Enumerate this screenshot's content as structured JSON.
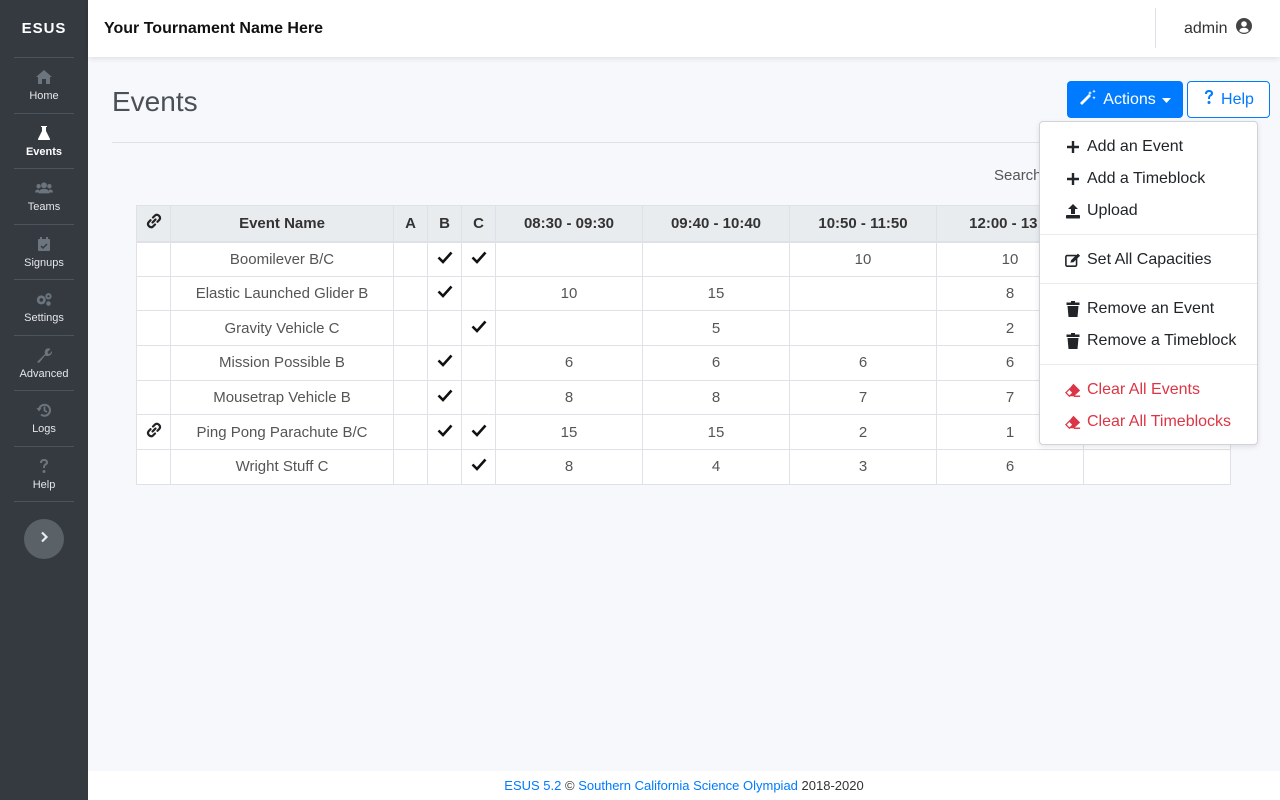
{
  "sidebar": {
    "brand": "ESUS",
    "items": [
      {
        "label": "Home",
        "icon": "home-icon"
      },
      {
        "label": "Events",
        "icon": "flask-icon"
      },
      {
        "label": "Teams",
        "icon": "users-icon"
      },
      {
        "label": "Signups",
        "icon": "calendar-icon"
      },
      {
        "label": "Settings",
        "icon": "gears-icon"
      },
      {
        "label": "Advanced",
        "icon": "wrench-icon"
      },
      {
        "label": "Logs",
        "icon": "history-icon"
      },
      {
        "label": "Help",
        "icon": "question-icon"
      }
    ],
    "active": "Events"
  },
  "header": {
    "title": "Your Tournament Name Here",
    "user": "admin"
  },
  "page": {
    "title": "Events",
    "search_label": "Search"
  },
  "buttons": {
    "actions": "Actions",
    "help": "Help"
  },
  "table": {
    "headers": [
      "Event Name",
      "A",
      "B",
      "C",
      "08:30 - 09:30",
      "09:40 - 10:40",
      "10:50 - 11:50",
      "12:00 - 13:0"
    ],
    "rows": [
      {
        "linked": false,
        "name": "Boomilever B/C",
        "a": false,
        "b": true,
        "c": true,
        "slots": [
          "",
          "",
          "10",
          "10"
        ]
      },
      {
        "linked": false,
        "name": "Elastic Launched Glider B",
        "a": false,
        "b": true,
        "c": false,
        "slots": [
          "10",
          "15",
          "",
          "8"
        ]
      },
      {
        "linked": false,
        "name": "Gravity Vehicle C",
        "a": false,
        "b": false,
        "c": true,
        "slots": [
          "",
          "5",
          "",
          "2"
        ]
      },
      {
        "linked": false,
        "name": "Mission Possible B",
        "a": false,
        "b": true,
        "c": false,
        "slots": [
          "6",
          "6",
          "6",
          "6"
        ]
      },
      {
        "linked": false,
        "name": "Mousetrap Vehicle B",
        "a": false,
        "b": true,
        "c": false,
        "slots": [
          "8",
          "8",
          "7",
          "7"
        ]
      },
      {
        "linked": true,
        "name": "Ping Pong Parachute B/C",
        "a": false,
        "b": true,
        "c": true,
        "slots": [
          "15",
          "15",
          "2",
          "1"
        ]
      },
      {
        "linked": false,
        "name": "Wright Stuff C",
        "a": false,
        "b": false,
        "c": true,
        "slots": [
          "8",
          "4",
          "3",
          "6"
        ]
      }
    ]
  },
  "menu": {
    "items": [
      {
        "label": "Add an Event",
        "icon": "plus-icon",
        "danger": false
      },
      {
        "label": "Add a Timeblock",
        "icon": "plus-icon",
        "danger": false
      },
      {
        "label": "Upload",
        "icon": "upload-icon",
        "danger": false
      },
      {
        "label": "Set All Capacities",
        "icon": "edit-icon",
        "danger": false
      },
      {
        "label": "Remove an Event",
        "icon": "trash-icon",
        "danger": false
      },
      {
        "label": "Remove a Timeblock",
        "icon": "trash-icon",
        "danger": false
      },
      {
        "label": "Clear All Events",
        "icon": "eraser-icon",
        "danger": true
      },
      {
        "label": "Clear All Timeblocks",
        "icon": "eraser-icon",
        "danger": true
      }
    ]
  },
  "footer": {
    "version": "ESUS 5.2",
    "copy": "©",
    "org": "Southern California Science Olympiad",
    "years": "2018-2020"
  },
  "colors": {
    "sidebar": "#343a40",
    "primary": "#007bff",
    "danger": "#dc3545"
  }
}
